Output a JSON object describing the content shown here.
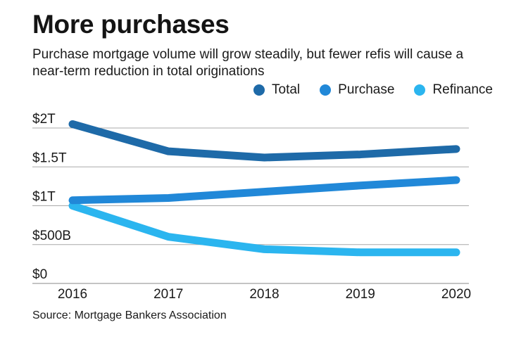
{
  "header": {
    "title": "More purchases",
    "subtitle": "Purchase mortgage volume will grow steadily, but fewer refis will cause a near-term reduction in total originations"
  },
  "source": "Source: Mortgage Bankers Association",
  "chart_data": {
    "type": "line",
    "title": "More purchases",
    "subtitle": "Purchase mortgage volume will grow steadily, but fewer refis will cause a near-term reduction in total originations",
    "xlabel": "",
    "ylabel": "",
    "categories": [
      "2016",
      "2017",
      "2018",
      "2019",
      "2020"
    ],
    "y_ticks": [
      0,
      0.5,
      1,
      1.5,
      2
    ],
    "y_tick_labels": [
      "$0",
      "$500B",
      "$1T",
      "$1.5T",
      "$2T"
    ],
    "ylim": [
      0,
      2
    ],
    "grid": true,
    "legend_position": "top-right",
    "series": [
      {
        "name": "Total",
        "color": "#1e6aa8",
        "values": [
          2.05,
          1.7,
          1.62,
          1.66,
          1.73
        ]
      },
      {
        "name": "Purchase",
        "color": "#2188d8",
        "values": [
          1.07,
          1.1,
          1.18,
          1.26,
          1.33
        ]
      },
      {
        "name": "Refinance",
        "color": "#2bb5ef",
        "values": [
          1.0,
          0.6,
          0.44,
          0.4,
          0.4
        ]
      }
    ]
  }
}
